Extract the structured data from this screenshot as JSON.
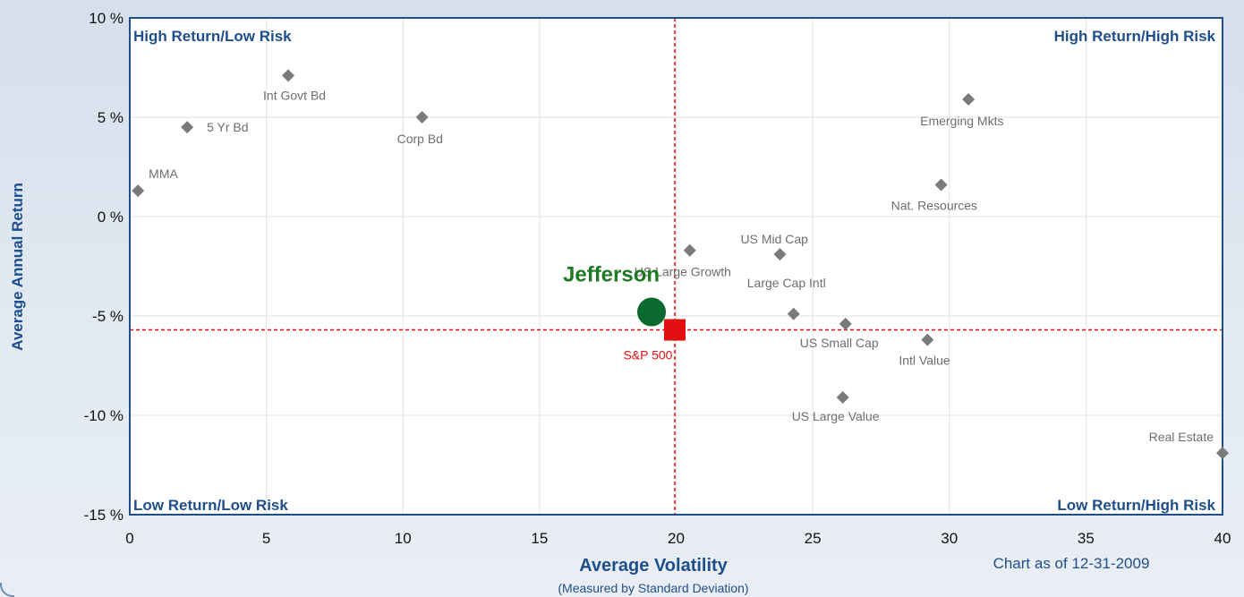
{
  "chart_data": {
    "type": "scatter",
    "title": "",
    "xlabel": "Average Volatility",
    "xlabel_sub": "(Measured by Standard Deviation)",
    "ylabel": "Average Annual Return",
    "xlim": [
      0,
      40
    ],
    "ylim": [
      -15,
      10
    ],
    "x_ticks": [
      0,
      5,
      10,
      15,
      20,
      25,
      30,
      35,
      40
    ],
    "x_tick_labels": [
      "0",
      "5",
      "10",
      "15",
      "20",
      "25",
      "30",
      "35",
      "40"
    ],
    "y_ticks": [
      10,
      5,
      0,
      -5,
      -10,
      -15
    ],
    "y_tick_labels": [
      "10 %",
      "5 %",
      "0 %",
      "-5 %",
      "-10 %",
      "-15 %"
    ],
    "grid": true,
    "quadrant_labels": {
      "top_left": "High Return/Low Risk",
      "top_right": "High Return/High Risk",
      "bottom_left": "Low Return/Low Risk",
      "bottom_right": "Low Return/High Risk"
    },
    "reference_lines": {
      "x": 19.95,
      "y": -5.7,
      "color": "#e01010"
    },
    "points": [
      {
        "label": "MMA",
        "x": 0.3,
        "y": 1.3
      },
      {
        "label": "5 Yr Bd",
        "x": 2.1,
        "y": 4.5
      },
      {
        "label": "Int Govt Bd",
        "x": 5.8,
        "y": 7.1
      },
      {
        "label": "Corp Bd",
        "x": 10.7,
        "y": 5.0
      },
      {
        "label": "Emerging Mkts",
        "x": 30.7,
        "y": 5.9
      },
      {
        "label": "Nat. Resources",
        "x": 29.7,
        "y": 1.6
      },
      {
        "label": "US Large Growth",
        "x": 20.5,
        "y": -1.7
      },
      {
        "label": "US Mid Cap",
        "x": 23.8,
        "y": -1.9
      },
      {
        "label": "Large Cap Intl",
        "x": 24.3,
        "y": -4.9
      },
      {
        "label": "US Small Cap",
        "x": 26.2,
        "y": -5.4
      },
      {
        "label": "Intl Value",
        "x": 29.2,
        "y": -6.2
      },
      {
        "label": "US Large Value",
        "x": 26.1,
        "y": -9.1
      },
      {
        "label": "Real Estate",
        "x": 40.0,
        "y": -11.9
      }
    ],
    "highlight_points": [
      {
        "label": "Jefferson",
        "x": 19.1,
        "y": -4.8,
        "color": "#0b6a2e",
        "shape": "circle"
      },
      {
        "label": "S&P 500",
        "x": 19.95,
        "y": -5.7,
        "color": "#e01010",
        "shape": "square"
      }
    ],
    "marker_color": "#7a7a7a",
    "axis_color": "#1f4e8c",
    "note": "Chart as of 12-31-2009"
  }
}
